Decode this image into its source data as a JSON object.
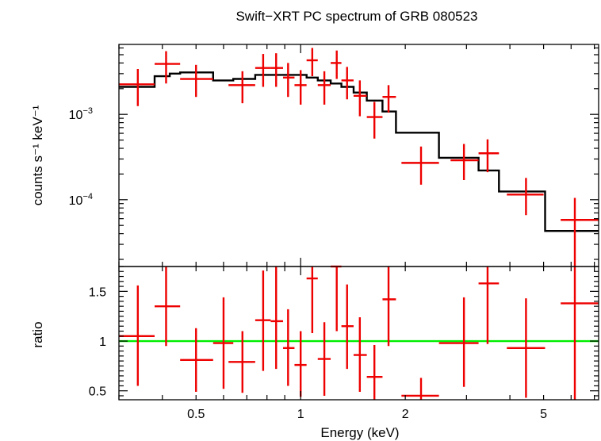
{
  "chart_data": [
    {
      "type": "scatter",
      "panel": "spectrum",
      "title": "Swift−XRT PC spectrum of GRB 080523",
      "ylabel": "counts s⁻¹ keV⁻¹",
      "xlabel": "",
      "xscale": "log",
      "yscale": "log",
      "xlim": [
        0.3,
        7.2
      ],
      "ylim": [
        1.65e-05,
        0.0066
      ],
      "ytick_labels": [
        {
          "value": 0.001,
          "base": "10",
          "exp": "−3"
        },
        {
          "value": 0.0001,
          "base": "10",
          "exp": "−4"
        }
      ],
      "data_color": "#ee0000",
      "model_color": "#000000",
      "data": [
        {
          "x": 0.34,
          "xlo": 0.3,
          "xhi": 0.38,
          "y": 0.00225,
          "ylo": 0.00125,
          "yhi": 0.0034
        },
        {
          "x": 0.41,
          "xlo": 0.38,
          "xhi": 0.45,
          "y": 0.0039,
          "ylo": 0.0023,
          "yhi": 0.0055
        },
        {
          "x": 0.5,
          "xlo": 0.45,
          "xhi": 0.56,
          "y": 0.0026,
          "ylo": 0.0016,
          "yhi": 0.0038
        },
        {
          "x": 0.68,
          "xlo": 0.62,
          "xhi": 0.74,
          "y": 0.0022,
          "ylo": 0.00135,
          "yhi": 0.0032
        },
        {
          "x": 0.78,
          "xlo": 0.74,
          "xhi": 0.82,
          "y": 0.0035,
          "ylo": 0.0021,
          "yhi": 0.0051
        },
        {
          "x": 0.85,
          "xlo": 0.82,
          "xhi": 0.89,
          "y": 0.0035,
          "ylo": 0.0021,
          "yhi": 0.0052
        },
        {
          "x": 0.92,
          "xlo": 0.89,
          "xhi": 0.96,
          "y": 0.0027,
          "ylo": 0.0016,
          "yhi": 0.004
        },
        {
          "x": 1.0,
          "xlo": 0.96,
          "xhi": 1.04,
          "y": 0.0022,
          "ylo": 0.0013,
          "yhi": 0.0033
        },
        {
          "x": 1.08,
          "xlo": 1.04,
          "xhi": 1.12,
          "y": 0.0043,
          "ylo": 0.0028,
          "yhi": 0.006
        },
        {
          "x": 1.17,
          "xlo": 1.12,
          "xhi": 1.22,
          "y": 0.0022,
          "ylo": 0.0013,
          "yhi": 0.0032
        },
        {
          "x": 1.27,
          "xlo": 1.22,
          "xhi": 1.31,
          "y": 0.004,
          "ylo": 0.0026,
          "yhi": 0.0056
        },
        {
          "x": 1.36,
          "xlo": 1.31,
          "xhi": 1.42,
          "y": 0.0025,
          "ylo": 0.0015,
          "yhi": 0.0036
        },
        {
          "x": 1.48,
          "xlo": 1.42,
          "xhi": 1.55,
          "y": 0.00165,
          "ylo": 0.00095,
          "yhi": 0.0025
        },
        {
          "x": 1.63,
          "xlo": 1.55,
          "xhi": 1.72,
          "y": 0.00093,
          "ylo": 0.00052,
          "yhi": 0.0014
        },
        {
          "x": 1.79,
          "xlo": 1.72,
          "xhi": 1.88,
          "y": 0.0016,
          "ylo": 0.00105,
          "yhi": 0.0022
        },
        {
          "x": 2.22,
          "xlo": 1.95,
          "xhi": 2.5,
          "y": 0.00027,
          "ylo": 0.00015,
          "yhi": 0.00042
        },
        {
          "x": 2.95,
          "xlo": 2.7,
          "xhi": 3.25,
          "y": 0.00029,
          "ylo": 0.00017,
          "yhi": 0.00045
        },
        {
          "x": 3.45,
          "xlo": 3.25,
          "xhi": 3.72,
          "y": 0.00035,
          "ylo": 0.00021,
          "yhi": 0.00051
        },
        {
          "x": 4.45,
          "xlo": 3.92,
          "xhi": 5.0,
          "y": 0.000115,
          "ylo": 6.6e-05,
          "yhi": 0.00018
        },
        {
          "x": 6.15,
          "xlo": 5.6,
          "xhi": 7.2,
          "y": 5.8e-05,
          "ylo": 1.65e-05,
          "yhi": 0.000105
        }
      ],
      "model": [
        {
          "xlo": 0.3,
          "xhi": 0.38,
          "y": 0.0021
        },
        {
          "xlo": 0.38,
          "xhi": 0.42,
          "y": 0.0028
        },
        {
          "xlo": 0.42,
          "xhi": 0.45,
          "y": 0.003
        },
        {
          "xlo": 0.45,
          "xhi": 0.56,
          "y": 0.0031
        },
        {
          "xlo": 0.56,
          "xhi": 0.64,
          "y": 0.0025
        },
        {
          "xlo": 0.64,
          "xhi": 0.74,
          "y": 0.0026
        },
        {
          "xlo": 0.74,
          "xhi": 0.89,
          "y": 0.0029
        },
        {
          "xlo": 0.89,
          "xhi": 0.96,
          "y": 0.0029
        },
        {
          "xlo": 0.96,
          "xhi": 1.04,
          "y": 0.0029
        },
        {
          "xlo": 1.04,
          "xhi": 1.12,
          "y": 0.0027
        },
        {
          "xlo": 1.12,
          "xhi": 1.22,
          "y": 0.0025
        },
        {
          "xlo": 1.22,
          "xhi": 1.31,
          "y": 0.0023
        },
        {
          "xlo": 1.31,
          "xhi": 1.42,
          "y": 0.0021
        },
        {
          "xlo": 1.42,
          "xhi": 1.55,
          "y": 0.0018
        },
        {
          "xlo": 1.55,
          "xhi": 1.72,
          "y": 0.00145
        },
        {
          "xlo": 1.72,
          "xhi": 1.88,
          "y": 0.00108
        },
        {
          "xlo": 1.88,
          "xhi": 2.5,
          "y": 0.00061
        },
        {
          "xlo": 2.5,
          "xhi": 3.25,
          "y": 0.00031
        },
        {
          "xlo": 3.25,
          "xhi": 3.72,
          "y": 0.00022
        },
        {
          "xlo": 3.72,
          "xhi": 5.05,
          "y": 0.000125
        },
        {
          "xlo": 5.05,
          "xhi": 7.2,
          "y": 4.3e-05
        }
      ]
    },
    {
      "type": "scatter",
      "panel": "ratio",
      "xlabel": "Energy (keV)",
      "ylabel": "ratio",
      "xscale": "log",
      "yscale": "linear",
      "xlim": [
        0.3,
        7.2
      ],
      "ylim": [
        0.41,
        1.75
      ],
      "xtick_labels": [
        {
          "value": 0.5,
          "label": "0.5"
        },
        {
          "value": 1,
          "label": "1"
        },
        {
          "value": 2,
          "label": "2"
        },
        {
          "value": 5,
          "label": "5"
        }
      ],
      "ytick_labels": [
        {
          "value": 0.5,
          "label": "0.5"
        },
        {
          "value": 1,
          "label": "1"
        },
        {
          "value": 1.5,
          "label": "1.5"
        }
      ],
      "reference_line": {
        "y": 1,
        "color": "#00ee00"
      },
      "data_color": "#ee0000",
      "data": [
        {
          "x": 0.34,
          "xlo": 0.3,
          "xhi": 0.38,
          "y": 1.05,
          "ylo": 0.55,
          "yhi": 1.56
        },
        {
          "x": 0.41,
          "xlo": 0.38,
          "xhi": 0.45,
          "y": 1.35,
          "ylo": 0.95,
          "yhi": 1.75
        },
        {
          "x": 0.5,
          "xlo": 0.45,
          "xhi": 0.56,
          "y": 0.81,
          "ylo": 0.49,
          "yhi": 1.13
        },
        {
          "x": 0.6,
          "xlo": 0.56,
          "xhi": 0.64,
          "y": 0.98,
          "ylo": 0.52,
          "yhi": 1.44
        },
        {
          "x": 0.68,
          "xlo": 0.62,
          "xhi": 0.74,
          "y": 0.79,
          "ylo": 0.48,
          "yhi": 1.1
        },
        {
          "x": 0.78,
          "xlo": 0.74,
          "xhi": 0.82,
          "y": 1.21,
          "ylo": 0.7,
          "yhi": 1.71
        },
        {
          "x": 0.85,
          "xlo": 0.82,
          "xhi": 0.89,
          "y": 1.2,
          "ylo": 0.72,
          "yhi": 1.75
        },
        {
          "x": 0.92,
          "xlo": 0.89,
          "xhi": 0.96,
          "y": 0.93,
          "ylo": 0.55,
          "yhi": 1.32
        },
        {
          "x": 1.0,
          "xlo": 0.96,
          "xhi": 1.04,
          "y": 0.76,
          "ylo": 0.44,
          "yhi": 1.1
        },
        {
          "x": 1.08,
          "xlo": 1.04,
          "xhi": 1.12,
          "y": 1.63,
          "ylo": 1.08,
          "yhi": 1.75
        },
        {
          "x": 1.17,
          "xlo": 1.12,
          "xhi": 1.22,
          "y": 0.82,
          "ylo": 0.45,
          "yhi": 1.19
        },
        {
          "x": 1.27,
          "xlo": 1.22,
          "xhi": 1.31,
          "y": 1.75,
          "ylo": 1.1,
          "yhi": 1.75
        },
        {
          "x": 1.36,
          "xlo": 1.31,
          "xhi": 1.42,
          "y": 1.15,
          "ylo": 0.72,
          "yhi": 1.57
        },
        {
          "x": 1.48,
          "xlo": 1.42,
          "xhi": 1.55,
          "y": 0.86,
          "ylo": 0.49,
          "yhi": 1.24
        },
        {
          "x": 1.63,
          "xlo": 1.55,
          "xhi": 1.72,
          "y": 0.64,
          "ylo": 0.41,
          "yhi": 0.96
        },
        {
          "x": 1.79,
          "xlo": 1.72,
          "xhi": 1.88,
          "y": 1.42,
          "ylo": 0.95,
          "yhi": 1.75
        },
        {
          "x": 2.22,
          "xlo": 1.95,
          "xhi": 2.5,
          "y": 0.45,
          "ylo": 0.41,
          "yhi": 0.63
        },
        {
          "x": 2.95,
          "xlo": 2.5,
          "xhi": 3.25,
          "y": 0.98,
          "ylo": 0.54,
          "yhi": 1.44
        },
        {
          "x": 3.45,
          "xlo": 3.25,
          "xhi": 3.72,
          "y": 1.58,
          "ylo": 0.97,
          "yhi": 1.75
        },
        {
          "x": 4.45,
          "xlo": 3.92,
          "xhi": 5.05,
          "y": 0.93,
          "ylo": 0.43,
          "yhi": 1.43
        },
        {
          "x": 6.15,
          "xlo": 5.6,
          "xhi": 7.2,
          "y": 1.38,
          "ylo": 0.41,
          "yhi": 1.75
        }
      ]
    }
  ]
}
